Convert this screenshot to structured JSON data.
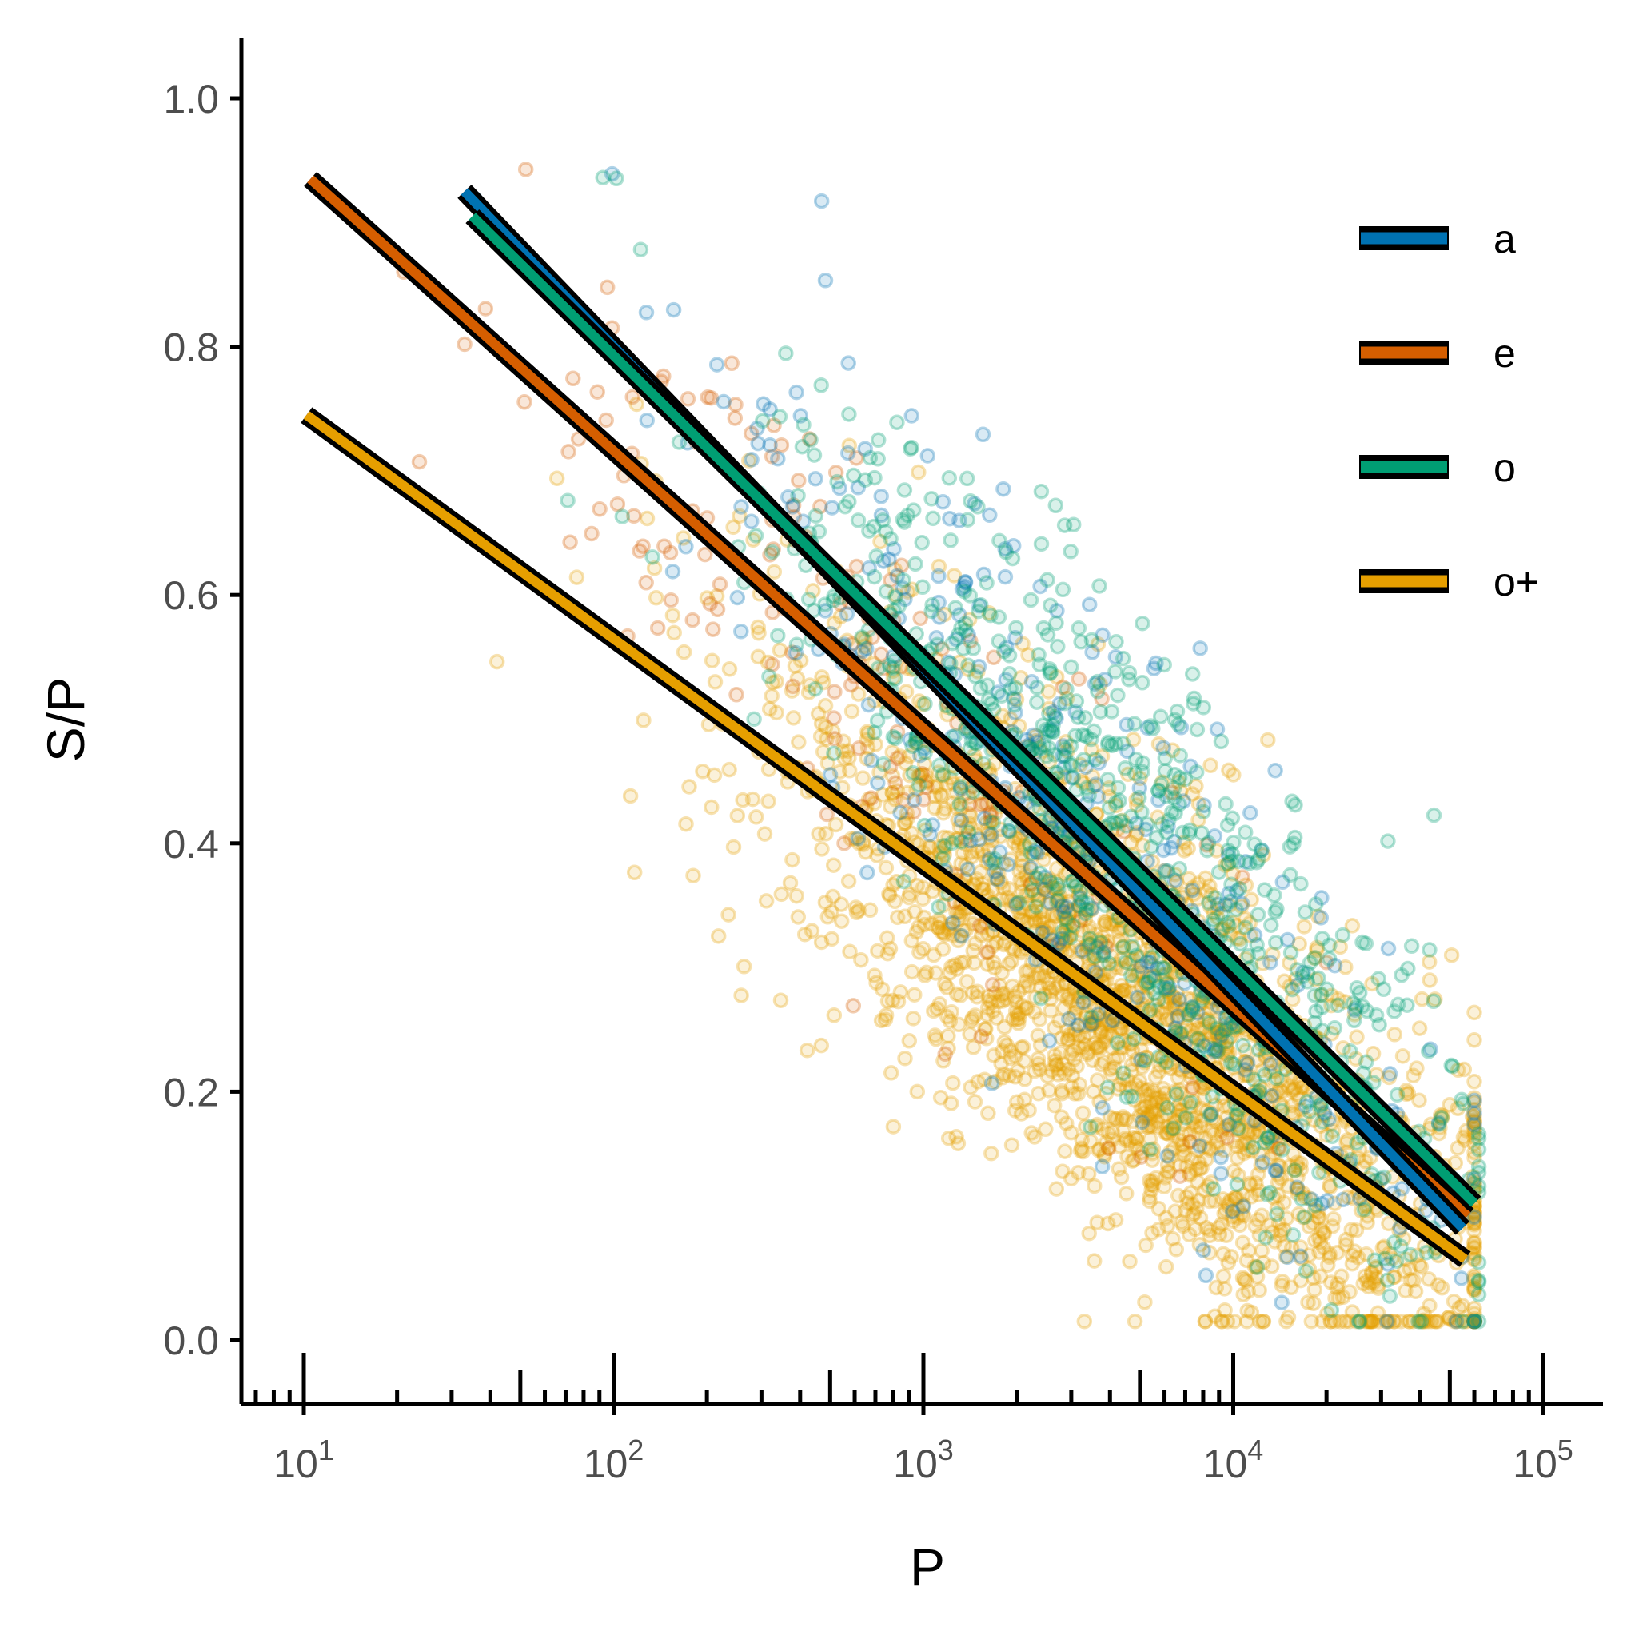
{
  "chart_data": {
    "type": "scatter",
    "title": "",
    "xlabel": "P",
    "ylabel": "S/P",
    "x_scale": "log10",
    "xlim": [
      6.3,
      150000
    ],
    "ylim": [
      -0.05,
      1.05
    ],
    "x_major_ticks": [
      10,
      100,
      1000,
      10000,
      100000
    ],
    "x_tick_labels": [
      {
        "base": "10",
        "exp": "1"
      },
      {
        "base": "10",
        "exp": "2"
      },
      {
        "base": "10",
        "exp": "3"
      },
      {
        "base": "10",
        "exp": "4"
      },
      {
        "base": "10",
        "exp": "5"
      }
    ],
    "y_ticks": [
      0.0,
      0.2,
      0.4,
      0.6,
      0.8,
      1.0
    ],
    "y_tick_labels": [
      "0.0",
      "0.2",
      "0.4",
      "0.6",
      "0.8",
      "1.0"
    ],
    "grid": false,
    "legend_position": "right",
    "point_opacity": 0.25,
    "series": [
      {
        "name": "a",
        "color": "#0072B2",
        "point_count": 420,
        "point_x_range": [
          35,
          60000
        ],
        "point_center": {
          "log10_x": 3.6,
          "y": 0.5
        },
        "fit_line": [
          [
            33,
            0.925
          ],
          [
            55000,
            0.09
          ]
        ]
      },
      {
        "name": "e",
        "color": "#D55E00",
        "point_count": 160,
        "point_x_range": [
          10,
          20000
        ],
        "point_center": {
          "log10_x": 2.7,
          "y": 0.55
        },
        "fit_line": [
          [
            10.5,
            0.935
          ],
          [
            57000,
            0.1
          ]
        ]
      },
      {
        "name": "o",
        "color": "#009E73",
        "point_count": 800,
        "point_x_range": [
          35,
          62000
        ],
        "point_center": {
          "log10_x": 3.65,
          "y": 0.48
        },
        "fit_line": [
          [
            35,
            0.905
          ],
          [
            60000,
            0.11
          ]
        ]
      },
      {
        "name": "o+",
        "color": "#E69F00",
        "point_count": 2300,
        "point_x_range": [
          10,
          60000
        ],
        "point_center": {
          "log10_x": 3.7,
          "y": 0.2
        },
        "fit_line": [
          [
            10.2,
            0.745
          ],
          [
            56000,
            0.065
          ]
        ]
      }
    ]
  }
}
